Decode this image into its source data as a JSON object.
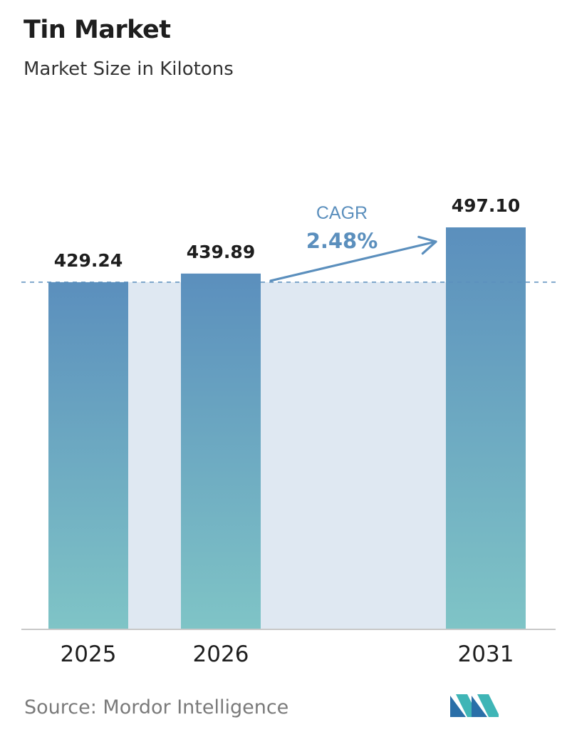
{
  "header": {
    "title": "Tin Market",
    "subtitle": "Market Size in Kilotons"
  },
  "chart_data": {
    "type": "bar",
    "categories": [
      "2025",
      "2026",
      "2031"
    ],
    "values": [
      429.24,
      439.89,
      497.1
    ],
    "value_labels": [
      "429.24",
      "439.89",
      "497.10"
    ],
    "title": "Tin Market",
    "subtitle": "Market Size in Kilotons",
    "xlabel": "",
    "ylabel": "",
    "ylim": [
      0,
      497.1
    ],
    "grid": false,
    "legend": "none",
    "reference_line": {
      "value": 429.24,
      "style": "dashed"
    },
    "annotation": {
      "label": "CAGR",
      "value": "2.48%"
    },
    "colors": {
      "bar_top": "#5b8fbd",
      "bar_bottom": "#7fc4c6",
      "band": "#dfe8f2",
      "arrow": "#5b8fbd",
      "axis": "#c8c8c8"
    }
  },
  "footer": {
    "source": "Source:  Mordor Intelligence",
    "logo_icon": "mordor-intelligence-logo-icon"
  }
}
